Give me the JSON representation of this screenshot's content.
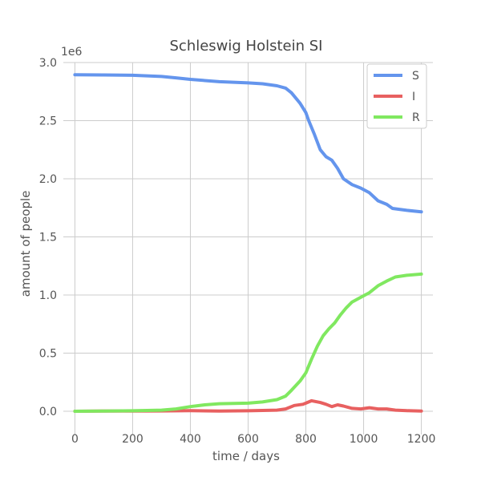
{
  "chart_data": {
    "type": "line",
    "title": "Schleswig Holstein SI",
    "xlabel": "time / days",
    "ylabel": "amount of people",
    "y_scale_label": "1e6",
    "xlim": [
      -40,
      1240
    ],
    "ylim": [
      -0.2,
      3.0
    ],
    "x_ticks": [
      0,
      200,
      400,
      600,
      800,
      1000,
      1200
    ],
    "x_tick_labels": [
      "0",
      "200",
      "400",
      "600",
      "800",
      "1000",
      "1200"
    ],
    "y_ticks": [
      0.0,
      0.5,
      1.0,
      1.5,
      2.0,
      2.5,
      3.0
    ],
    "y_tick_labels": [
      "0.0",
      "0.5",
      "1.0",
      "1.5",
      "2.0",
      "2.5",
      "3.0"
    ],
    "grid": true,
    "legend_position": "top-right",
    "series": [
      {
        "name": "S",
        "color": "#6495ed",
        "points": [
          [
            0,
            2.895
          ],
          [
            100,
            2.893
          ],
          [
            200,
            2.89
          ],
          [
            300,
            2.88
          ],
          [
            350,
            2.868
          ],
          [
            400,
            2.855
          ],
          [
            500,
            2.835
          ],
          [
            600,
            2.825
          ],
          [
            650,
            2.817
          ],
          [
            700,
            2.8
          ],
          [
            730,
            2.78
          ],
          [
            750,
            2.74
          ],
          [
            780,
            2.65
          ],
          [
            800,
            2.57
          ],
          [
            810,
            2.5
          ],
          [
            830,
            2.38
          ],
          [
            850,
            2.25
          ],
          [
            870,
            2.19
          ],
          [
            890,
            2.16
          ],
          [
            910,
            2.09
          ],
          [
            930,
            2.0
          ],
          [
            960,
            1.95
          ],
          [
            990,
            1.92
          ],
          [
            1020,
            1.88
          ],
          [
            1050,
            1.81
          ],
          [
            1080,
            1.78
          ],
          [
            1100,
            1.745
          ],
          [
            1150,
            1.728
          ],
          [
            1200,
            1.715
          ]
        ]
      },
      {
        "name": "I",
        "color": "#e86060",
        "points": [
          [
            0,
            0.0
          ],
          [
            100,
            0.002
          ],
          [
            200,
            0.002
          ],
          [
            300,
            0.003
          ],
          [
            400,
            0.005
          ],
          [
            500,
            0.002
          ],
          [
            600,
            0.004
          ],
          [
            700,
            0.01
          ],
          [
            730,
            0.02
          ],
          [
            760,
            0.05
          ],
          [
            790,
            0.06
          ],
          [
            820,
            0.09
          ],
          [
            850,
            0.075
          ],
          [
            870,
            0.06
          ],
          [
            890,
            0.04
          ],
          [
            910,
            0.055
          ],
          [
            930,
            0.045
          ],
          [
            960,
            0.025
          ],
          [
            990,
            0.02
          ],
          [
            1020,
            0.03
          ],
          [
            1050,
            0.02
          ],
          [
            1080,
            0.02
          ],
          [
            1110,
            0.01
          ],
          [
            1150,
            0.005
          ],
          [
            1200,
            0.002
          ]
        ]
      },
      {
        "name": "R",
        "color": "#80e860",
        "points": [
          [
            0,
            0.0
          ],
          [
            100,
            0.002
          ],
          [
            200,
            0.004
          ],
          [
            300,
            0.01
          ],
          [
            350,
            0.02
          ],
          [
            400,
            0.04
          ],
          [
            450,
            0.055
          ],
          [
            500,
            0.065
          ],
          [
            600,
            0.07
          ],
          [
            650,
            0.08
          ],
          [
            700,
            0.1
          ],
          [
            730,
            0.13
          ],
          [
            750,
            0.18
          ],
          [
            780,
            0.26
          ],
          [
            800,
            0.33
          ],
          [
            820,
            0.45
          ],
          [
            840,
            0.56
          ],
          [
            860,
            0.65
          ],
          [
            880,
            0.71
          ],
          [
            900,
            0.76
          ],
          [
            920,
            0.83
          ],
          [
            940,
            0.89
          ],
          [
            960,
            0.94
          ],
          [
            990,
            0.98
          ],
          [
            1020,
            1.02
          ],
          [
            1050,
            1.08
          ],
          [
            1080,
            1.12
          ],
          [
            1110,
            1.155
          ],
          [
            1150,
            1.17
          ],
          [
            1200,
            1.18
          ]
        ]
      }
    ]
  }
}
